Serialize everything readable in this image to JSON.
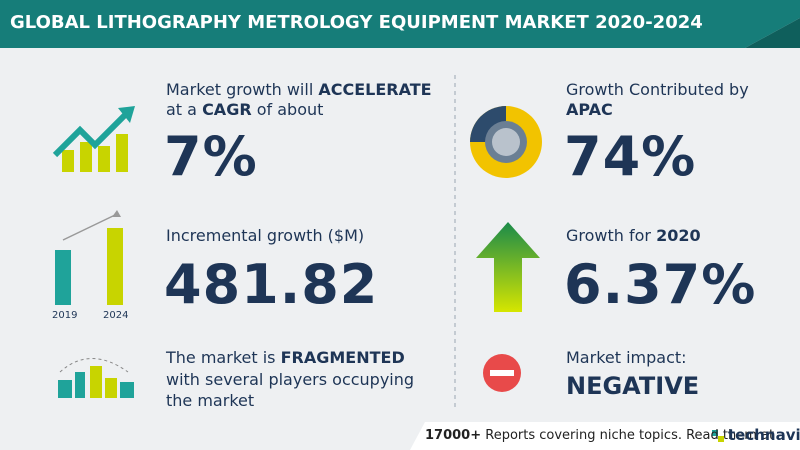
{
  "header": {
    "title": "GLOBAL LITHOGRAPHY METROLOGY EQUIPMENT MARKET 2020-2024"
  },
  "cagr": {
    "text1": "Market growth will",
    "emphasis1": "ACCELERATE",
    "text2": "at a",
    "emphasis2": "CAGR",
    "text3": "of about",
    "value": "7%"
  },
  "incremental": {
    "label": "Incremental growth ($M)",
    "value": "481.82",
    "year_start": "2019",
    "year_end": "2024"
  },
  "market": {
    "text1": "The market is",
    "emphasis": "FRAGMENTED",
    "text2": "with several players occupying the market"
  },
  "region": {
    "label": "Growth Contributed by",
    "name": "APAC",
    "value": "74%"
  },
  "yoy": {
    "label": "Growth for",
    "year": "2020",
    "value": "6.37%"
  },
  "impact": {
    "label": "Market impact:",
    "value": "NEGATIVE"
  },
  "footer": {
    "count": "17000+",
    "text": "Reports covering niche topics. Read them at",
    "brand": "technavio"
  }
}
